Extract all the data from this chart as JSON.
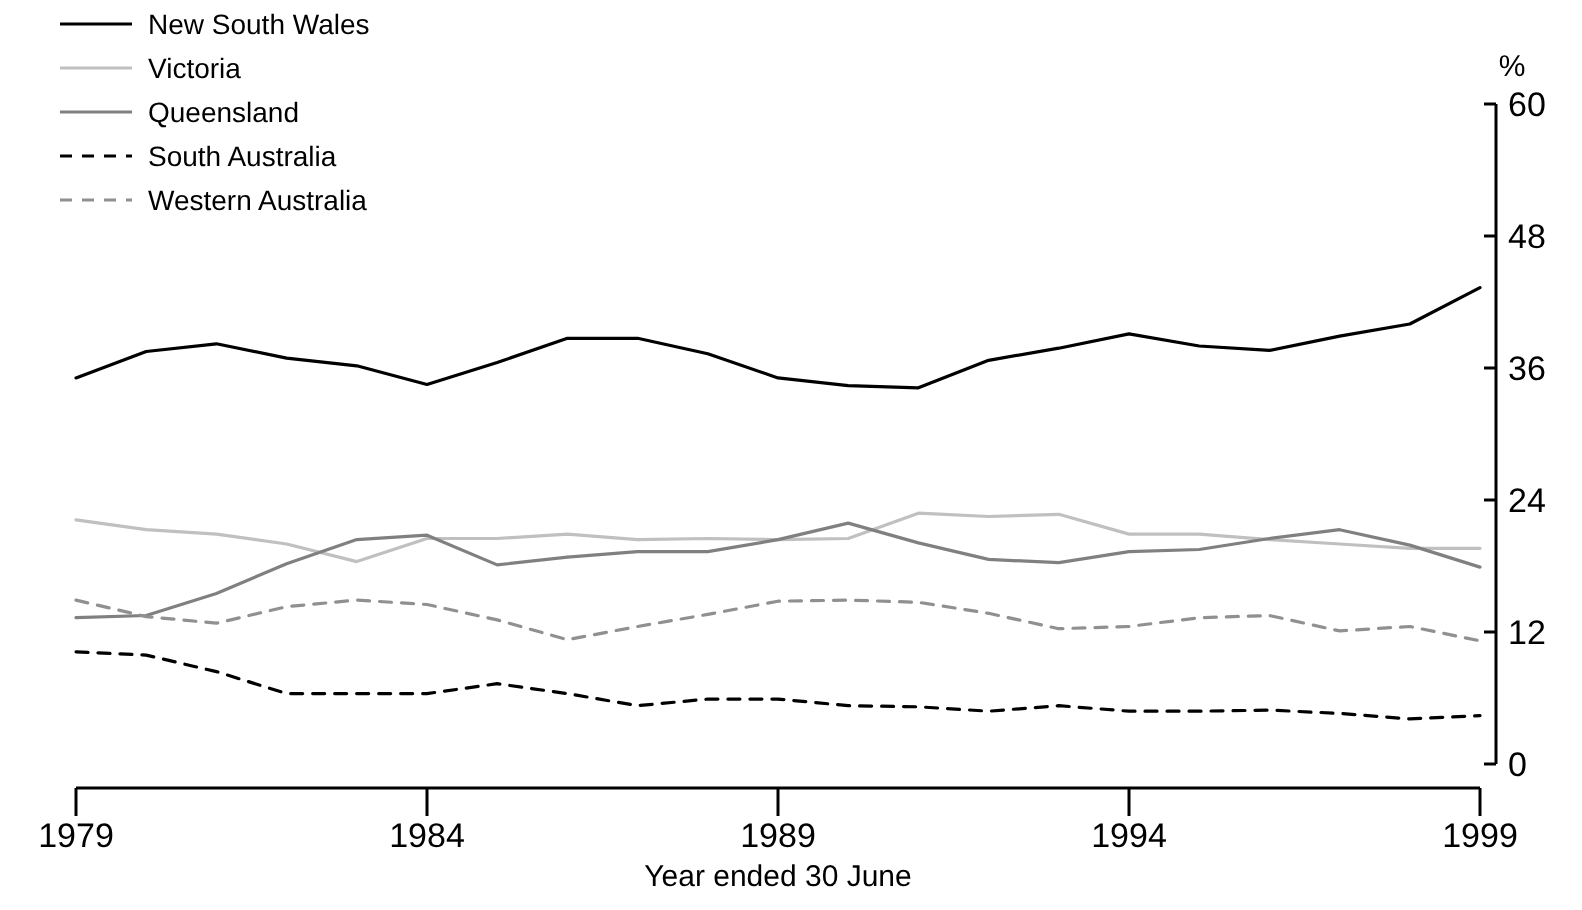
{
  "chart_data": {
    "type": "line",
    "xlabel": "Year ended 30 June",
    "ylabel": "%",
    "x": [
      1979,
      1980,
      1981,
      1982,
      1983,
      1984,
      1985,
      1986,
      1987,
      1988,
      1989,
      1990,
      1991,
      1992,
      1993,
      1994,
      1995,
      1996,
      1997,
      1998,
      1999
    ],
    "xlim": [
      1979,
      1999
    ],
    "xticks": [
      1979,
      1984,
      1989,
      1994,
      1999
    ],
    "ylim": [
      0,
      60
    ],
    "yticks": [
      0,
      12,
      24,
      36,
      48,
      60
    ],
    "grid": false,
    "legend": "top left",
    "marker": "none",
    "series": [
      {
        "name": "New South Wales",
        "color": "#000000",
        "line_style": "solid",
        "values": [
          35.1,
          37.5,
          38.2,
          36.9,
          36.2,
          34.5,
          36.5,
          38.7,
          38.7,
          37.3,
          35.1,
          34.4,
          34.2,
          36.7,
          37.8,
          39.1,
          38,
          37.6,
          38.9,
          40,
          43.3
        ]
      },
      {
        "name": "Victoria",
        "color": "#c0c0c0",
        "line_style": "solid",
        "values": [
          22.2,
          21.3,
          20.9,
          20,
          18.4,
          20.5,
          20.5,
          20.9,
          20.4,
          20.5,
          20.4,
          20.5,
          22.8,
          22.5,
          22.7,
          20.9,
          20.9,
          20.4,
          20,
          19.6,
          19.6
        ]
      },
      {
        "name": "Queensland",
        "color": "#808080",
        "line_style": "solid",
        "values": [
          13.3,
          13.5,
          15.5,
          18.2,
          20.4,
          20.8,
          18.1,
          18.8,
          19.3,
          19.3,
          20.4,
          21.9,
          20.1,
          18.6,
          18.3,
          19.3,
          19.5,
          20.5,
          21.3,
          19.9,
          17.9
        ]
      },
      {
        "name": "South Australia",
        "color": "#000000",
        "line_style": "dashed",
        "values": [
          10.2,
          9.9,
          8.4,
          6.4,
          6.4,
          6.4,
          7.3,
          6.4,
          5.3,
          5.9,
          5.9,
          5.3,
          5.2,
          4.8,
          5.3,
          4.8,
          4.8,
          4.9,
          4.6,
          4.1,
          4.4
        ]
      },
      {
        "name": "Western Australia",
        "color": "#909090",
        "line_style": "dashed",
        "values": [
          14.9,
          13.4,
          12.8,
          14.3,
          14.9,
          14.5,
          13.1,
          11.3,
          12.5,
          13.6,
          14.8,
          14.9,
          14.7,
          13.7,
          12.3,
          12.5,
          13.3,
          13.5,
          12.1,
          12.5,
          11.2
        ]
      }
    ]
  }
}
